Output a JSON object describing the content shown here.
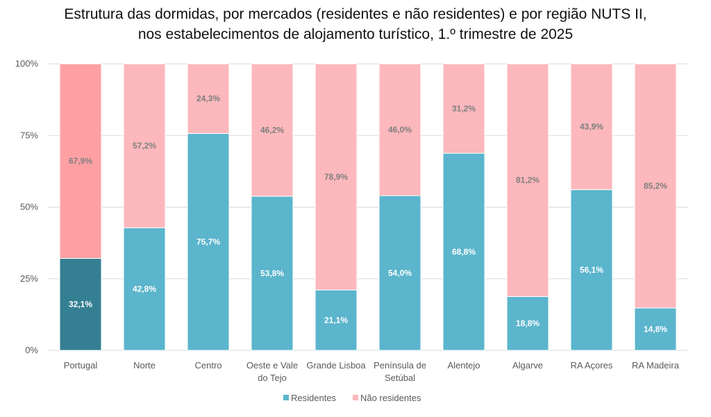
{
  "chart_data": {
    "type": "bar",
    "stacked": true,
    "title": "Estrutura das dormidas, por mercados (residentes e não residentes) e por região NUTS II,",
    "subtitle": "nos estabelecimentos de alojamento turístico, 1.º trimestre de 2025",
    "categories": [
      [
        "Portugal"
      ],
      [
        "Norte"
      ],
      [
        "Centro"
      ],
      [
        "Oeste e Vale",
        "do Tejo"
      ],
      [
        "Grande Lisboa"
      ],
      [
        "Península de",
        "Setúbal"
      ],
      [
        "Alentejo"
      ],
      [
        "Algarve"
      ],
      [
        "RA Açores"
      ],
      [
        "RA Madeira"
      ]
    ],
    "series": [
      {
        "name": "Residentes",
        "values": [
          32.1,
          42.8,
          75.7,
          53.8,
          21.1,
          54.0,
          68.8,
          18.8,
          56.1,
          14.8
        ],
        "labels": [
          "32,1%",
          "42,8%",
          "75,7%",
          "53,8%",
          "21,1%",
          "54,0%",
          "68,8%",
          "18,8%",
          "56,1%",
          "14,8%"
        ],
        "color": "#5BB5CC",
        "highlight_color": "#357F93"
      },
      {
        "name": "Não residentes",
        "values": [
          67.9,
          57.2,
          24.3,
          46.2,
          78.9,
          46.0,
          31.2,
          81.2,
          43.9,
          85.2
        ],
        "labels": [
          "67,9%",
          "57,2%",
          "24,3%",
          "46,2%",
          "78,9%",
          "46,0%",
          "31,2%",
          "81,2%",
          "43,9%",
          "85,2%"
        ],
        "color": "#FCB8BC",
        "highlight_color": "#FEA0A3"
      }
    ],
    "highlight_category": "Portugal",
    "y_ticks": [
      "0%",
      "25%",
      "50%",
      "75%",
      "100%"
    ],
    "ylim": [
      0,
      100
    ],
    "grid": true,
    "legend": "bottom"
  }
}
